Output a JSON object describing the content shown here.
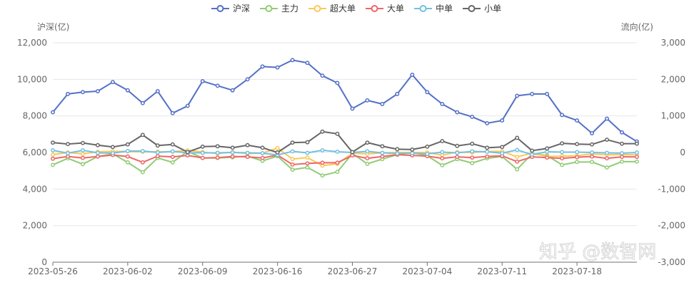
{
  "watermark": "知乎 @数智网",
  "chart_data": {
    "type": "line",
    "y_left_name": "沪深(亿)",
    "y_right_name": "流向(亿)",
    "y_left_ticks": [
      "0",
      "2,000",
      "4,000",
      "6,000",
      "8,000",
      "10,000",
      "12,000"
    ],
    "y_right_ticks": [
      "-3,000",
      "-2,000",
      "-1,000",
      "0",
      "1,000",
      "2,000",
      "3,000"
    ],
    "ylim_left": [
      0,
      12000
    ],
    "ylim_right": [
      -3000,
      3000
    ],
    "grid": true,
    "legend_position": "top-center",
    "x_tick_labels": [
      "2023-05-26",
      "2023-06-02",
      "2023-06-09",
      "2023-06-16",
      "2023-06-27",
      "2023-07-04",
      "2023-07-11",
      "2023-07-18"
    ],
    "x_tick_indices": [
      0,
      5,
      10,
      15,
      20,
      25,
      30,
      35
    ],
    "n_points": 40,
    "series": [
      {
        "name": "沪深",
        "axis": "left",
        "color": "#5470c6",
        "values": [
          8200,
          9200,
          9300,
          9350,
          9850,
          9400,
          8700,
          9350,
          8150,
          8550,
          9900,
          9650,
          9400,
          10000,
          10700,
          10650,
          11050,
          10900,
          10200,
          9800,
          8400,
          8850,
          8650,
          9200,
          10250,
          9300,
          8650,
          8200,
          7950,
          7600,
          7750,
          9100,
          9200,
          9200,
          8050,
          7750,
          7050,
          7850,
          7100,
          6600
        ]
      },
      {
        "name": "主力",
        "axis": "right",
        "color": "#91cc75",
        "values": [
          -340,
          -160,
          -320,
          -110,
          -40,
          -270,
          -540,
          -150,
          -270,
          30,
          -150,
          -150,
          -130,
          -100,
          -230,
          -100,
          -470,
          -410,
          -630,
          -530,
          -30,
          -310,
          -180,
          -60,
          0,
          -90,
          -350,
          -180,
          -290,
          -160,
          -110,
          -460,
          -40,
          -80,
          -340,
          -260,
          -260,
          -410,
          -250,
          -250
        ]
      },
      {
        "name": "超大单",
        "axis": "right",
        "color": "#fac858",
        "values": [
          -60,
          0,
          -40,
          20,
          30,
          30,
          20,
          20,
          20,
          60,
          10,
          -30,
          10,
          -30,
          -20,
          120,
          -180,
          -140,
          -360,
          -310,
          -20,
          -40,
          -10,
          0,
          0,
          0,
          -70,
          10,
          0,
          30,
          30,
          -120,
          -20,
          -110,
          -100,
          -90,
          -40,
          -60,
          -60,
          -60
        ]
      },
      {
        "name": "大单",
        "axis": "right",
        "color": "#ee6666",
        "values": [
          -170,
          -110,
          -150,
          -110,
          -70,
          -110,
          -270,
          -100,
          -120,
          -80,
          -150,
          -140,
          -110,
          -120,
          -150,
          -70,
          -330,
          -300,
          -280,
          -280,
          -80,
          -160,
          -110,
          -60,
          -80,
          -100,
          -160,
          -120,
          -140,
          -110,
          -90,
          -250,
          -120,
          -140,
          -160,
          -130,
          -110,
          -160,
          -120,
          -120
        ]
      },
      {
        "name": "中单",
        "axis": "right",
        "color": "#73c0de",
        "values": [
          60,
          -20,
          60,
          -10,
          -20,
          40,
          40,
          0,
          30,
          -10,
          -10,
          -10,
          0,
          -10,
          -20,
          -70,
          30,
          -10,
          60,
          20,
          0,
          30,
          -10,
          -30,
          -20,
          -40,
          10,
          -10,
          30,
          20,
          -20,
          70,
          -60,
          20,
          10,
          10,
          0,
          -10,
          -20,
          0
        ]
      },
      {
        "name": "小单",
        "axis": "right",
        "color": "#666666",
        "values": [
          270,
          230,
          260,
          200,
          150,
          220,
          480,
          190,
          220,
          10,
          160,
          170,
          130,
          200,
          130,
          0,
          270,
          280,
          570,
          510,
          10,
          270,
          170,
          90,
          80,
          160,
          310,
          180,
          240,
          130,
          150,
          400,
          50,
          110,
          250,
          230,
          220,
          350,
          240,
          240
        ]
      }
    ]
  }
}
